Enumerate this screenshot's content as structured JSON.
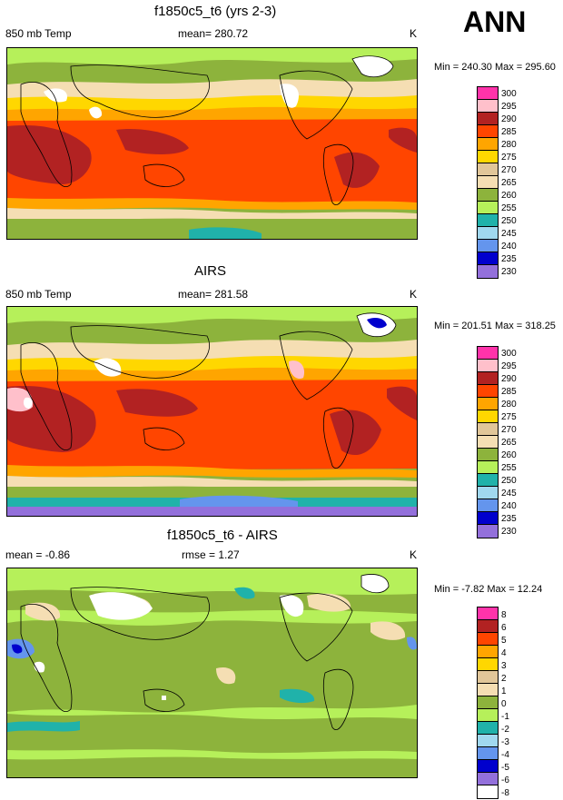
{
  "season": "ANN",
  "panels": [
    {
      "title": "f1850c5_t6 (yrs 2-3)",
      "left_label": "850 mb Temp",
      "center_label": "mean= 280.72",
      "unit": "K",
      "minmax": "Min = 240.30 Max = 295.60",
      "legend_labels": [
        "300",
        "295",
        "290",
        "285",
        "280",
        "275",
        "270",
        "265",
        "260",
        "255",
        "250",
        "245",
        "240",
        "235",
        "230"
      ],
      "legend_colors": [
        "#ff33aa",
        "#ffc0cb",
        "#b22222",
        "#ff4500",
        "#ffa500",
        "#ffd700",
        "#e1c699",
        "#f5deb3",
        "#8db33c",
        "#b6f05a",
        "#20b2aa",
        "#a0d8ef",
        "#6495ed",
        "#0000cd",
        "#9370db"
      ]
    },
    {
      "title": "AIRS",
      "left_label": "850 mb Temp",
      "center_label": "mean= 281.58",
      "unit": "K",
      "minmax": "Min = 201.51 Max = 318.25",
      "legend_labels": [
        "300",
        "295",
        "290",
        "285",
        "280",
        "275",
        "270",
        "265",
        "260",
        "255",
        "250",
        "245",
        "240",
        "235",
        "230"
      ],
      "legend_colors": [
        "#ff33aa",
        "#ffc0cb",
        "#b22222",
        "#ff4500",
        "#ffa500",
        "#ffd700",
        "#e1c699",
        "#f5deb3",
        "#8db33c",
        "#b6f05a",
        "#20b2aa",
        "#a0d8ef",
        "#6495ed",
        "#0000cd",
        "#9370db"
      ]
    },
    {
      "title": "f1850c5_t6 - AIRS",
      "left_label": "mean =  -0.86",
      "center_label": "rmse =   1.27",
      "unit": "K",
      "minmax": "Min =  -7.82 Max =  12.24",
      "legend_labels": [
        "8",
        "6",
        "5",
        "4",
        "3",
        "2",
        "1",
        "0",
        "-1",
        "-2",
        "-3",
        "-4",
        "-5",
        "-6",
        "-8"
      ],
      "legend_colors": [
        "#ff33aa",
        "#b22222",
        "#ff4500",
        "#ffa500",
        "#ffd700",
        "#e1c699",
        "#f5deb3",
        "#8db33c",
        "#b6f05a",
        "#20b2aa",
        "#a0d8ef",
        "#6495ed",
        "#0000cd",
        "#9370db",
        "#ffffff"
      ]
    }
  ]
}
